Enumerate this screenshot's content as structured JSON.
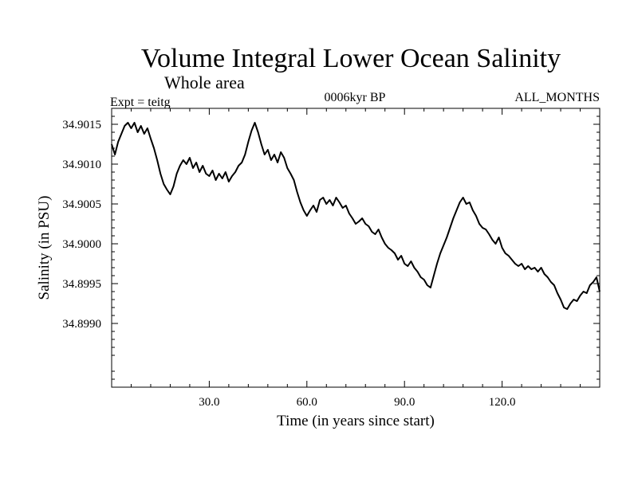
{
  "chart_data": {
    "type": "line",
    "title": "Volume Integral Lower Ocean Salinity",
    "subtitle": "Whole area",
    "header_left": "Expt = teitg",
    "header_center": "0006kyr BP",
    "header_right": "ALL_MONTHS",
    "xlabel": "Time (in years since start)",
    "ylabel": "Salinity (in PSU)",
    "xlim": [
      0,
      150
    ],
    "ylim": [
      34.8982,
      34.9017
    ],
    "xticks": [
      30,
      60,
      90,
      120
    ],
    "xtick_labels": [
      "30.0",
      "60.0",
      "90.0",
      "120.0"
    ],
    "yticks": [
      34.899,
      34.8995,
      34.9,
      34.9005,
      34.901,
      34.9015
    ],
    "ytick_labels": [
      "34.8990",
      "34.8995",
      "34.9000",
      "34.9005",
      "34.9010",
      "34.9015"
    ],
    "series": [
      {
        "name": "salinity",
        "x": [
          0,
          1,
          2,
          3,
          4,
          5,
          6,
          7,
          8,
          9,
          10,
          11,
          12,
          13,
          14,
          15,
          16,
          17,
          18,
          19,
          20,
          21,
          22,
          23,
          24,
          25,
          26,
          27,
          28,
          29,
          30,
          31,
          32,
          33,
          34,
          35,
          36,
          37,
          38,
          39,
          40,
          41,
          42,
          43,
          44,
          45,
          46,
          47,
          48,
          49,
          50,
          51,
          52,
          53,
          54,
          55,
          56,
          57,
          58,
          59,
          60,
          61,
          62,
          63,
          64,
          65,
          66,
          67,
          68,
          69,
          70,
          71,
          72,
          73,
          74,
          75,
          76,
          77,
          78,
          79,
          80,
          81,
          82,
          83,
          84,
          85,
          86,
          87,
          88,
          89,
          90,
          91,
          92,
          93,
          94,
          95,
          96,
          97,
          98,
          99,
          100,
          101,
          102,
          103,
          104,
          105,
          106,
          107,
          108,
          109,
          110,
          111,
          112,
          113,
          114,
          115,
          116,
          117,
          118,
          119,
          120,
          121,
          122,
          123,
          124,
          125,
          126,
          127,
          128,
          129,
          130,
          131,
          132,
          133,
          134,
          135,
          136,
          137,
          138,
          139,
          140,
          141,
          142,
          143,
          144,
          145,
          146,
          147,
          148,
          149,
          150
        ],
        "values": [
          34.90125,
          34.90112,
          34.90128,
          34.90138,
          34.90148,
          34.90152,
          34.90145,
          34.90152,
          34.9014,
          34.90148,
          34.90138,
          34.90145,
          34.90132,
          34.9012,
          34.90105,
          34.90088,
          34.90075,
          34.90068,
          34.90062,
          34.90072,
          34.90088,
          34.90098,
          34.90105,
          34.901,
          34.90108,
          34.90095,
          34.90102,
          34.9009,
          34.90098,
          34.90088,
          34.90085,
          34.90092,
          34.9008,
          34.90088,
          34.90082,
          34.9009,
          34.90078,
          34.90085,
          34.9009,
          34.90098,
          34.90102,
          34.90112,
          34.90128,
          34.90142,
          34.90152,
          34.9014,
          34.90125,
          34.90112,
          34.90118,
          34.90105,
          34.90112,
          34.90102,
          34.90115,
          34.90108,
          34.90095,
          34.90088,
          34.9008,
          34.90065,
          34.90052,
          34.90042,
          34.90035,
          34.90042,
          34.90048,
          34.9004,
          34.90055,
          34.90058,
          34.9005,
          34.90055,
          34.90048,
          34.90058,
          34.90052,
          34.90045,
          34.90048,
          34.90038,
          34.90032,
          34.90025,
          34.90028,
          34.90032,
          34.90025,
          34.90022,
          34.90015,
          34.90012,
          34.90018,
          34.90008,
          34.9,
          34.89995,
          34.89992,
          34.89988,
          34.8998,
          34.89985,
          34.89975,
          34.89972,
          34.89978,
          34.8997,
          34.89965,
          34.89958,
          34.89955,
          34.89948,
          34.89945,
          34.8996,
          34.89975,
          34.89988,
          34.89998,
          34.90008,
          34.9002,
          34.90032,
          34.90042,
          34.90052,
          34.90058,
          34.9005,
          34.90052,
          34.90042,
          34.90035,
          34.90025,
          34.9002,
          34.90018,
          34.90012,
          34.90005,
          34.9,
          34.90008,
          34.89995,
          34.89988,
          34.89985,
          34.8998,
          34.89975,
          34.89972,
          34.89975,
          34.89968,
          34.89972,
          34.89968,
          34.8997,
          34.89965,
          34.8997,
          34.89962,
          34.89958,
          34.89952,
          34.89948,
          34.89938,
          34.8993,
          34.8992,
          34.89918,
          34.89925,
          34.8993,
          34.89928,
          34.89935,
          34.8994,
          34.89938,
          34.89948,
          34.89952,
          34.89958,
          34.8994
        ]
      }
    ]
  }
}
